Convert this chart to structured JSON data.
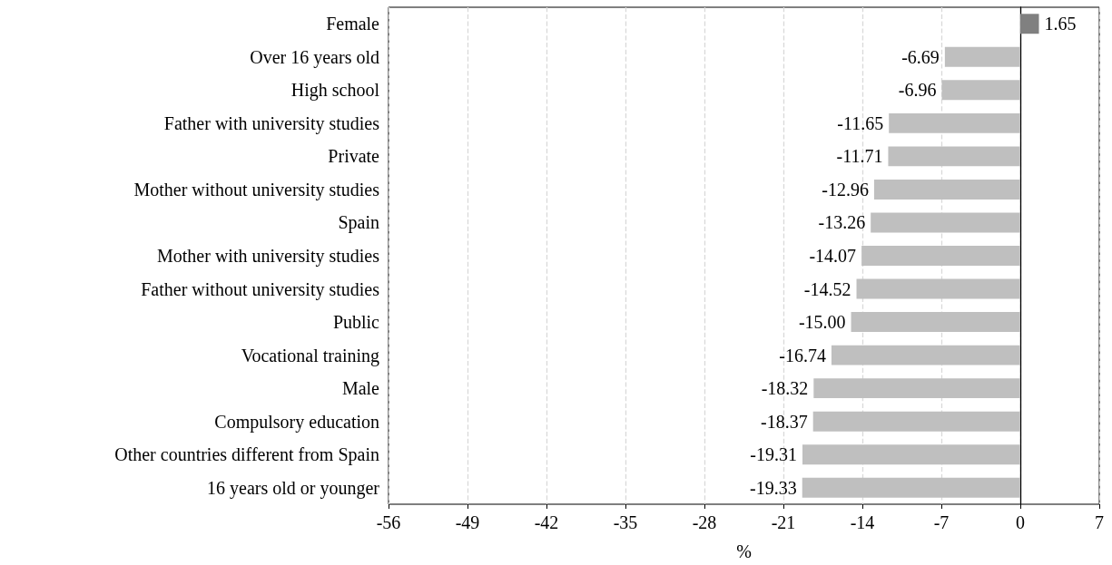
{
  "chart_data": {
    "type": "bar",
    "orientation": "horizontal",
    "xlabel": "%",
    "categories": [
      "Female",
      "Over 16 years old",
      "High school",
      "Father with university studies",
      "Private",
      "Mother without university studies",
      "Spain",
      "Mother with university studies",
      "Father without university studies",
      "Public",
      "Vocational training",
      "Male",
      "Compulsory education",
      "Other countries different from Spain",
      "16 years old or younger"
    ],
    "values": [
      1.65,
      -6.69,
      -6.96,
      -11.65,
      -11.71,
      -12.96,
      -13.26,
      -14.07,
      -14.52,
      -15.0,
      -16.74,
      -18.32,
      -18.37,
      -19.31,
      -19.33
    ],
    "value_labels": [
      "1.65",
      "-6.69",
      "-6.96",
      "-11.65",
      "-11.71",
      "-12.96",
      "-13.26",
      "-14.07",
      "-14.52",
      "-15.00",
      "-16.74",
      "-18.32",
      "-18.37",
      "-19.31",
      "-19.33"
    ],
    "colors": [
      "#808080",
      "#bfbfbf",
      "#bfbfbf",
      "#bfbfbf",
      "#bfbfbf",
      "#bfbfbf",
      "#bfbfbf",
      "#bfbfbf",
      "#bfbfbf",
      "#bfbfbf",
      "#bfbfbf",
      "#bfbfbf",
      "#bfbfbf",
      "#bfbfbf",
      "#bfbfbf"
    ],
    "xlim": [
      -56,
      7
    ],
    "xticks": [
      -56,
      -49,
      -42,
      -35,
      -28,
      -21,
      -14,
      -7,
      0,
      7
    ],
    "grid": "x"
  }
}
